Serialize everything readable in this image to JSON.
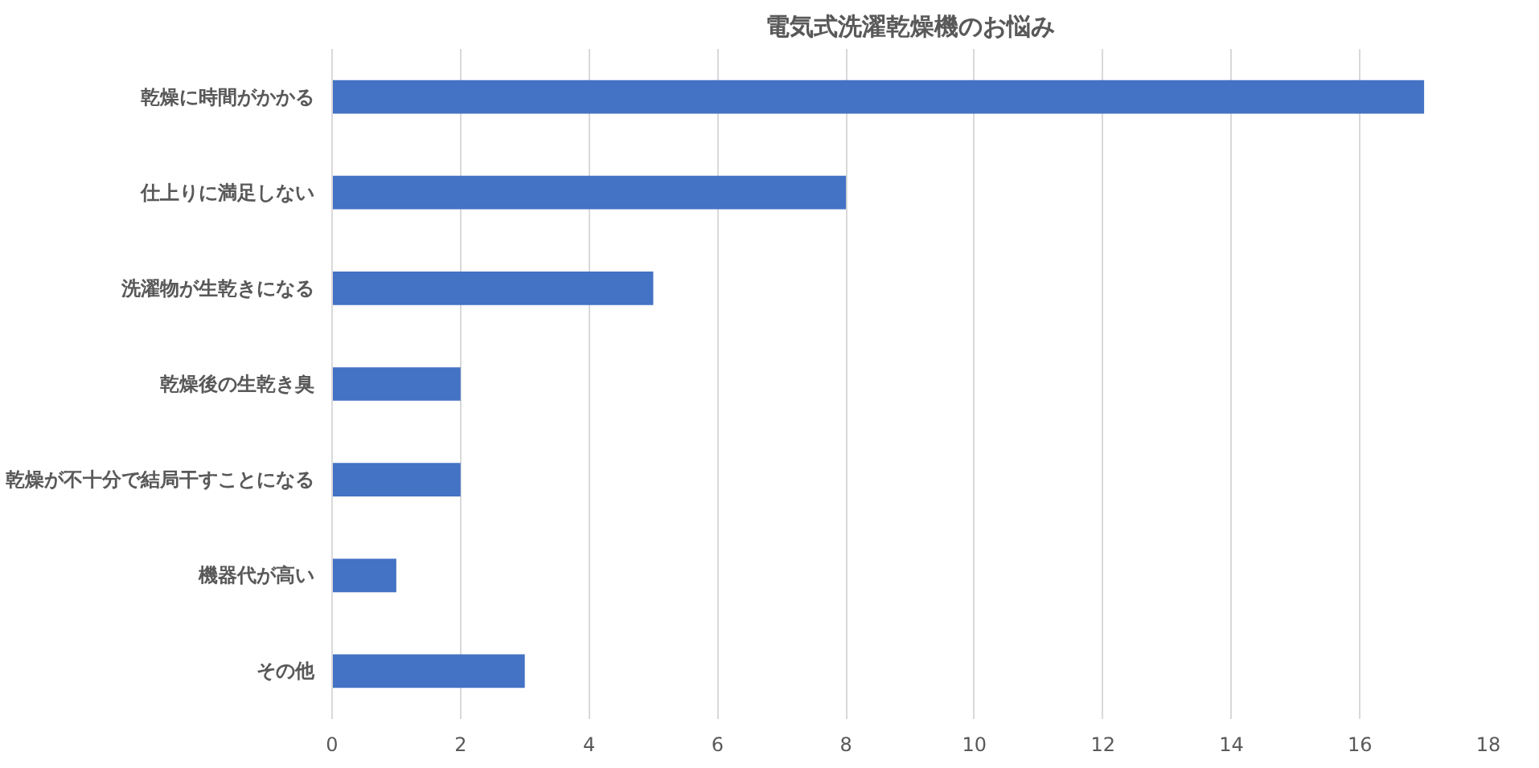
{
  "chart_data": {
    "type": "bar",
    "title": "電気式洗濯乾燥機のお悩み",
    "orientation": "horizontal",
    "categories": [
      "乾燥に時間がかかる",
      "仕上りに満足しない",
      "洗濯物が生乾きになる",
      "乾燥後の生乾き臭",
      "乾燥が不十分で結局干すことになる",
      "機器代が高い",
      "その他"
    ],
    "values": [
      17,
      8,
      5,
      2,
      2,
      1,
      3
    ],
    "color": "#4472c4",
    "xlim": [
      0,
      18
    ],
    "xticks": [
      0,
      2,
      4,
      6,
      8,
      10,
      12,
      14,
      16,
      18
    ],
    "grid": "x"
  }
}
